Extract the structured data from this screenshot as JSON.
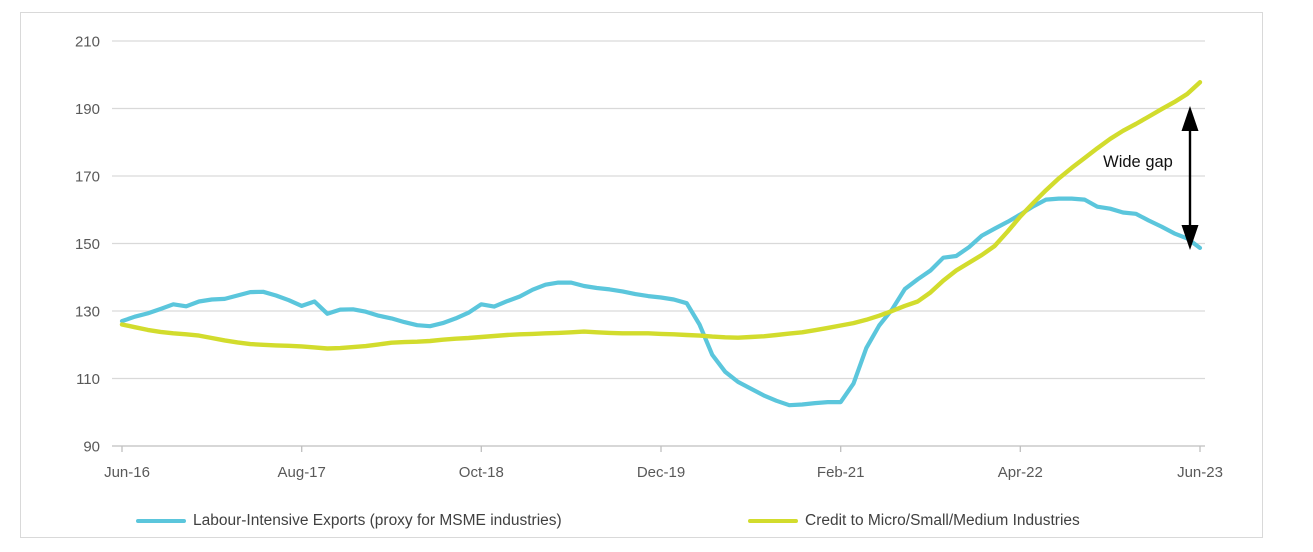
{
  "annotation": {
    "label": "Wide gap"
  },
  "legend": {
    "items": [
      {
        "label": "Labour-Intensive Exports (proxy for MSME industries)"
      },
      {
        "label": "Credit to Micro/Small/Medium Industries"
      }
    ]
  },
  "colors": {
    "exports_line": "#5bc6dc",
    "credit_line": "#d2dc2d",
    "gridline": "#d9d9d9",
    "axis_line": "#bfbfbf",
    "tick_text": "#595959",
    "annotation_arrow": "#000000"
  },
  "chart_data": {
    "type": "line",
    "title": "",
    "xlabel": "",
    "ylabel": "",
    "grid": true,
    "legend_position": "bottom",
    "x_frequency": "monthly",
    "x_start": "Jun-16",
    "x_end": "Jun-23",
    "x_axis": {
      "tick_labels": [
        "Jun-16",
        "Aug-17",
        "Oct-18",
        "Dec-19",
        "Feb-21",
        "Apr-22",
        "Jun-23"
      ]
    },
    "y_axis": {
      "min": 90,
      "max": 210,
      "ticks": [
        210,
        190,
        170,
        150,
        130,
        110,
        90
      ]
    },
    "series": [
      {
        "name": "Labour-Intensive Exports (proxy for MSME industries)",
        "color": "#5bc6dc",
        "values": [
          127.0,
          128.3,
          129.3,
          130.6,
          132.0,
          131.4,
          132.8,
          133.4,
          133.6,
          134.6,
          135.6,
          135.7,
          134.6,
          133.2,
          131.5,
          132.8,
          129.2,
          130.4,
          130.5,
          129.8,
          128.6,
          127.8,
          126.7,
          125.8,
          125.5,
          126.4,
          127.8,
          129.5,
          132.0,
          131.3,
          132.9,
          134.3,
          136.3,
          137.8,
          138.4,
          138.4,
          137.4,
          136.8,
          136.4,
          135.8,
          135.0,
          134.4,
          134.0,
          133.4,
          132.3,
          126.0,
          117.0,
          112.0,
          109.0,
          107.0,
          105.0,
          103.4,
          102.1,
          102.3,
          102.7,
          103.0,
          103.0,
          108.5,
          119.0,
          125.7,
          130.4,
          136.5,
          139.4,
          142.0,
          145.8,
          146.3,
          148.9,
          152.3,
          154.4,
          156.4,
          158.6,
          161.0,
          163.0,
          163.3,
          163.3,
          163.0,
          160.9,
          160.3,
          159.2,
          158.8,
          156.8,
          155.0,
          153.0,
          151.5,
          148.7
        ]
      },
      {
        "name": "Credit to Micro/Small/Medium Industries",
        "color": "#d2dc2d",
        "values": [
          126.0,
          125.2,
          124.4,
          123.8,
          123.4,
          123.1,
          122.7,
          122.0,
          121.3,
          120.7,
          120.2,
          120.0,
          119.8,
          119.7,
          119.5,
          119.2,
          118.9,
          119.0,
          119.3,
          119.6,
          120.1,
          120.6,
          120.8,
          120.9,
          121.1,
          121.5,
          121.8,
          122.0,
          122.3,
          122.6,
          122.9,
          123.1,
          123.2,
          123.4,
          123.5,
          123.7,
          123.9,
          123.7,
          123.5,
          123.4,
          123.4,
          123.4,
          123.2,
          123.1,
          122.9,
          122.7,
          122.4,
          122.2,
          122.1,
          122.3,
          122.5,
          122.9,
          123.3,
          123.7,
          124.3,
          125.0,
          125.7,
          126.4,
          127.4,
          128.6,
          130.0,
          131.5,
          132.8,
          135.5,
          139.0,
          142.0,
          144.3,
          146.6,
          149.3,
          153.5,
          158.0,
          162.0,
          165.8,
          169.3,
          172.4,
          175.3,
          178.2,
          181.0,
          183.4,
          185.4,
          187.6,
          189.8,
          191.9,
          194.3,
          197.8
        ]
      }
    ]
  }
}
